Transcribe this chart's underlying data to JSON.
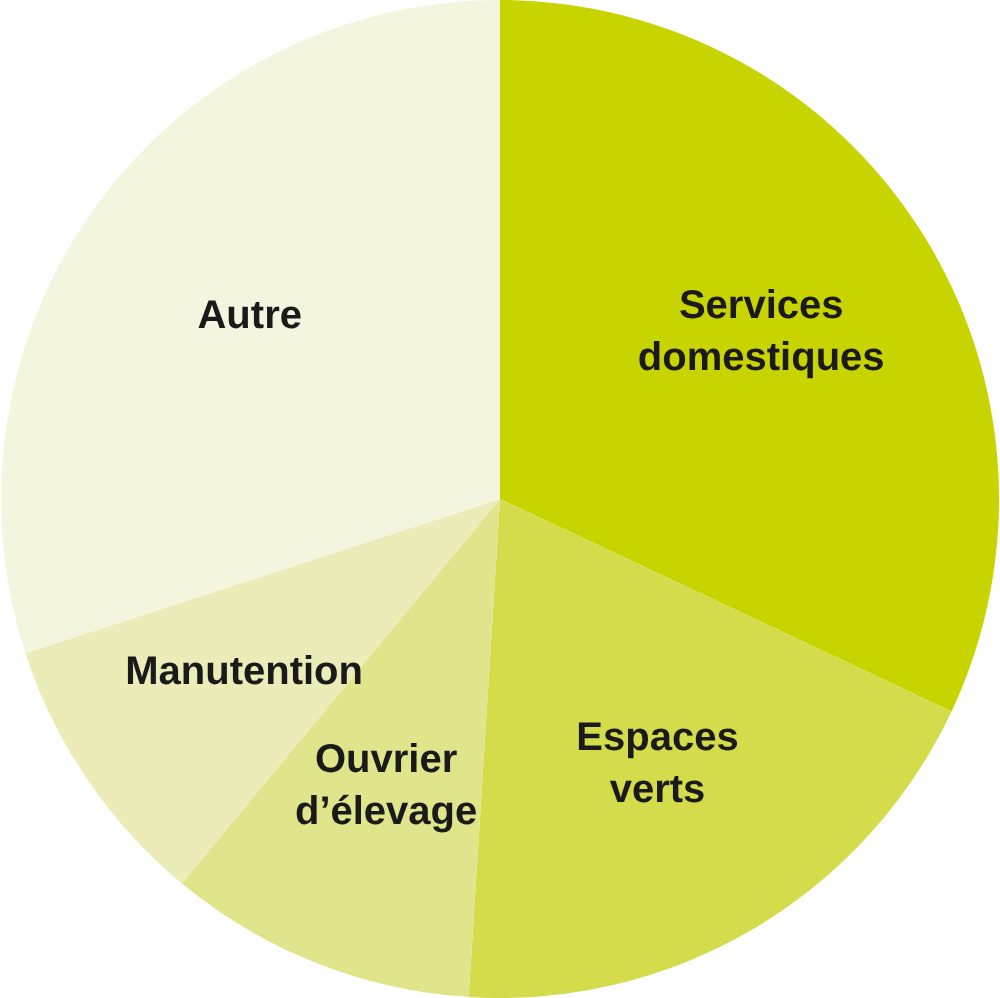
{
  "chart_data": {
    "type": "pie",
    "categories": [
      "Services domestiques",
      "Espaces verts",
      "Ouvrier d’élevage",
      "Manutention",
      "Autre"
    ],
    "values": [
      32,
      19,
      10,
      9,
      30
    ],
    "colors": [
      "#c8d400",
      "#d4dc4c",
      "#e0e48a",
      "#ebecb8",
      "#f4f5de"
    ],
    "legend": false
  }
}
